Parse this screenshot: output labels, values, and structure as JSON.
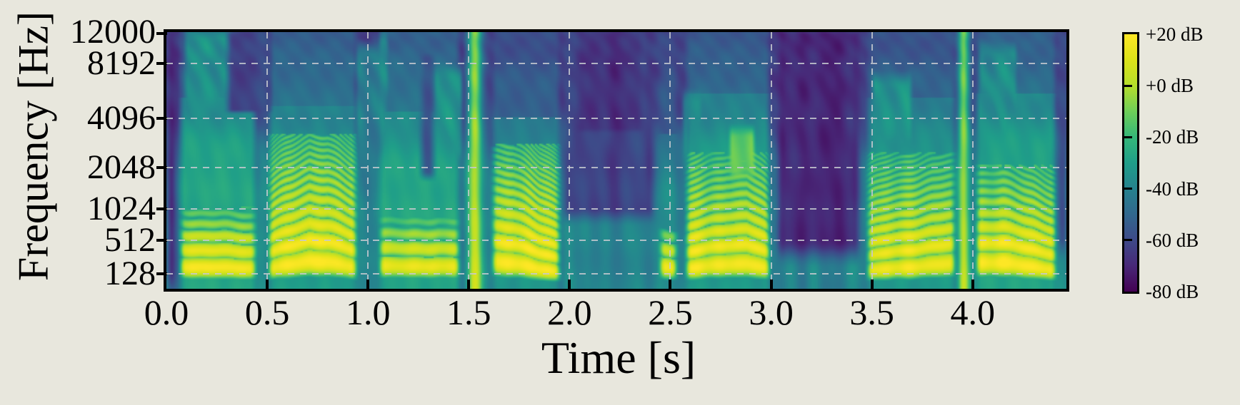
{
  "figure": {
    "background_color": "#e8e7dd",
    "spine_color": "#000000",
    "grid_color": "#c5c9cf",
    "text_color": "#000000"
  },
  "axes": {
    "x": {
      "label": "Time [s]",
      "tick_labels": [
        "0.0",
        "0.5",
        "1.0",
        "1.5",
        "2.0",
        "2.5",
        "3.0",
        "3.5",
        "4.0"
      ],
      "tick_values": [
        0,
        0.5,
        1,
        1.5,
        2,
        2.5,
        3,
        3.5,
        4
      ],
      "min": 0,
      "max": 4.465
    },
    "y": {
      "label": "Frequency [Hz]",
      "tick_labels": [
        "12000",
        "8192",
        "4096",
        "2048",
        "1024",
        "512",
        "128"
      ],
      "tick_values": [
        12000,
        8192,
        4096,
        2048,
        1024,
        512,
        128
      ],
      "scale": "mel",
      "min": 0,
      "max": 12000
    }
  },
  "colorbar": {
    "tick_labels": [
      "+20 dB",
      "+0 dB",
      "-20 dB",
      "-40 dB",
      "-60 dB",
      "-80 dB"
    ],
    "tick_values": [
      20,
      0,
      -20,
      -40,
      -60,
      -80
    ],
    "min_db": -80,
    "max_db": 20,
    "colormap": "viridis",
    "stops": [
      "#440154",
      "#482878",
      "#3e4a89",
      "#31688e",
      "#26828e",
      "#1f9e89",
      "#35b779",
      "#6ece58",
      "#b5de2b",
      "#dce319",
      "#fde725"
    ]
  },
  "chart_data": {
    "type": "heatmap",
    "subtype": "mel-spectrogram",
    "xlabel": "Time [s]",
    "ylabel": "Frequency [Hz]",
    "duration_s": 4.465,
    "freq_max_hz": 12000,
    "db_range": [
      -80,
      20
    ],
    "floor": {
      "low_db": -40,
      "high_db": -62,
      "low_to_high_hz": [
        700,
        5200
      ]
    },
    "events": [
      {
        "kind": "dark",
        "t0": 0.0,
        "t1": 0.05,
        "fmin": 0,
        "fmax": 12000,
        "db": -72
      },
      {
        "kind": "dark",
        "t0": 0.3,
        "t1": 0.52,
        "fmin": 4500,
        "fmax": 12000,
        "db": -62
      },
      {
        "kind": "dark",
        "t0": 1.26,
        "t1": 1.33,
        "fmin": 1800,
        "fmax": 9000,
        "db": -57
      },
      {
        "kind": "dark",
        "t0": 1.97,
        "t1": 2.42,
        "fmin": 900,
        "fmax": 12000,
        "db": -62
      },
      {
        "kind": "dark",
        "t0": 2.04,
        "t1": 2.36,
        "fmin": 3500,
        "fmax": 12000,
        "db": -67
      },
      {
        "kind": "dark",
        "t0": 3.03,
        "t1": 3.44,
        "fmin": 350,
        "fmax": 12000,
        "db": -70
      },
      {
        "kind": "dark",
        "t0": 4.42,
        "t1": 4.47,
        "fmin": 400,
        "fmax": 12000,
        "db": -62
      },
      {
        "kind": "voiced",
        "t0": 0.05,
        "t1": 0.46,
        "f0": [
          [
            0.05,
            195
          ],
          [
            0.25,
            185
          ],
          [
            0.46,
            178
          ]
        ],
        "level": 17,
        "fharm": 950,
        "broad": -27,
        "broadmax": 3600,
        "high": -48
      },
      {
        "kind": "voiced",
        "t0": 0.49,
        "t1": 0.96,
        "f0": [
          [
            0.49,
            168
          ],
          [
            0.62,
            215
          ],
          [
            0.71,
            256
          ],
          [
            0.8,
            242
          ],
          [
            0.96,
            172
          ]
        ],
        "level": 18,
        "fharm": 3000,
        "broad": -30,
        "broadmax": 3200,
        "high": -46
      },
      {
        "kind": "voiced",
        "t0": 1.04,
        "t1": 1.47,
        "f0": [
          [
            1.04,
            208
          ],
          [
            1.2,
            193
          ],
          [
            1.35,
            202
          ],
          [
            1.47,
            190
          ]
        ],
        "level": 13,
        "fharm": 820,
        "broad": -27,
        "broadmax": 3000,
        "high": -45
      },
      {
        "kind": "voiced",
        "t0": 1.6,
        "t1": 1.97,
        "f0": [
          [
            1.6,
            252
          ],
          [
            1.72,
            228
          ],
          [
            1.85,
            172
          ],
          [
            1.97,
            140
          ]
        ],
        "level": 18,
        "fharm": 2600,
        "broad": -33,
        "broadmax": 2800,
        "high": -52
      },
      {
        "kind": "voiced",
        "t0": 2.43,
        "t1": 2.55,
        "f0": [
          [
            2.43,
            198
          ],
          [
            2.55,
            185
          ]
        ],
        "level": 15,
        "fharm": 620,
        "broad": -36,
        "broadmax": 2200,
        "high": -54
      },
      {
        "kind": "voiced",
        "t0": 2.56,
        "t1": 3.01,
        "f0": [
          [
            2.56,
            168
          ],
          [
            2.78,
            222
          ],
          [
            2.88,
            228
          ],
          [
            3.01,
            158
          ]
        ],
        "level": 16,
        "fharm": 2300,
        "broad": -31,
        "broadmax": 3800,
        "high": -48
      },
      {
        "kind": "voiced",
        "t0": 3.46,
        "t1": 3.93,
        "f0": [
          [
            3.46,
            150
          ],
          [
            3.65,
            184
          ],
          [
            3.8,
            212
          ],
          [
            3.93,
            224
          ]
        ],
        "level": 15,
        "fharm": 2300,
        "broad": -32,
        "broadmax": 3600,
        "high": -50
      },
      {
        "kind": "voiced",
        "t0": 4.0,
        "t1": 4.43,
        "f0": [
          [
            4.0,
            238
          ],
          [
            4.15,
            232
          ],
          [
            4.3,
            196
          ],
          [
            4.43,
            148
          ]
        ],
        "level": 18,
        "fharm": 1900,
        "broad": -28,
        "broadmax": 3800,
        "high": -46
      },
      {
        "kind": "burst",
        "t": 1.53,
        "w": 0.035,
        "level": -6,
        "low_boost": 16
      },
      {
        "kind": "burst",
        "t": 3.955,
        "w": 0.028,
        "level": -10,
        "low_boost": 16
      },
      {
        "kind": "hi",
        "t0": 0.09,
        "t1": 0.33,
        "fmin": 1400,
        "fmax": 11600,
        "db": -36
      },
      {
        "kind": "hi",
        "t0": 0.94,
        "t1": 1.1,
        "fmin": 700,
        "fmax": 9500,
        "db": -43
      },
      {
        "kind": "hi",
        "t0": 1.055,
        "t1": 1.1,
        "fmin": 300,
        "fmax": 11000,
        "db": -38
      },
      {
        "kind": "hi",
        "t0": 1.32,
        "t1": 1.47,
        "fmin": 2600,
        "fmax": 7200,
        "db": -34
      },
      {
        "kind": "hi",
        "t0": 2.56,
        "t1": 2.66,
        "fmin": 500,
        "fmax": 5200,
        "db": -40
      },
      {
        "kind": "hi",
        "t0": 2.79,
        "t1": 2.92,
        "fmin": 1900,
        "fmax": 3300,
        "db": -12
      },
      {
        "kind": "hi",
        "t0": 3.5,
        "t1": 3.7,
        "fmin": 3200,
        "fmax": 6500,
        "db": -34
      },
      {
        "kind": "hi",
        "t0": 4.03,
        "t1": 4.22,
        "fmin": 2800,
        "fmax": 9500,
        "db": -36
      }
    ]
  }
}
